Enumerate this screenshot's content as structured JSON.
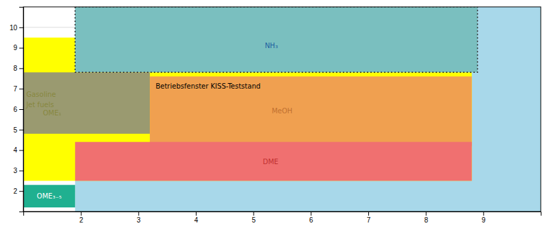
{
  "chart_data": {
    "type": "regions",
    "xlim": [
      1,
      10
    ],
    "ylim": [
      1,
      11
    ],
    "xticks": [
      2,
      3,
      4,
      5,
      6,
      7,
      8,
      9
    ],
    "yticks": [
      2,
      3,
      4,
      5,
      6,
      7,
      8,
      9,
      10
    ],
    "grid": true,
    "regions": [
      {
        "x": 1.9,
        "y": 1.0,
        "width": 8.1,
        "height": 10.0,
        "color": "#a8d8ea"
      },
      {
        "x": 1.0,
        "y": 2.5,
        "width": 7.8,
        "height": 7.0,
        "color": "#ffff00"
      },
      {
        "x": 1.9,
        "y": 7.8,
        "width": 7.0,
        "height": 3.2,
        "color": "#7abfbf"
      },
      {
        "x": 1.0,
        "y": 4.8,
        "width": 2.2,
        "height": 3.0,
        "color": "#9a9a70"
      },
      {
        "x": 3.2,
        "y": 4.2,
        "width": 5.6,
        "height": 3.4,
        "color": "#f0a050"
      },
      {
        "x": 1.9,
        "y": 2.5,
        "width": 6.9,
        "height": 1.9,
        "color": "#f07070"
      },
      {
        "x": 1.0,
        "y": 1.2,
        "width": 0.9,
        "height": 1.1,
        "color": "#20b090"
      }
    ],
    "outline": {
      "x": 1.9,
      "y": 7.8,
      "width": 7.0,
      "height": 3.2,
      "color": "#303030",
      "line_style": "dotted"
    },
    "annotations": [
      {
        "text": "NH₃",
        "x": 5.2,
        "y": 9.1,
        "color": "#2060a0",
        "align": "left"
      },
      {
        "text": "Gasoline",
        "x": 1.05,
        "y": 6.7,
        "color": "#888840",
        "align": "left"
      },
      {
        "text": "Jet fuels",
        "x": 1.05,
        "y": 6.2,
        "color": "#888840",
        "align": "left"
      },
      {
        "text": "OME₁",
        "x": 1.5,
        "y": 6.2,
        "color": "#888840",
        "align": "center"
      },
      {
        "text": "Betriebsfenster KISS-Teststand",
        "x": 3.3,
        "y": 7.1,
        "color": "#000000",
        "align": "left"
      },
      {
        "text": "MeOH",
        "x": 5.5,
        "y": 5.9,
        "color": "#c07030",
        "align": "center"
      },
      {
        "text": "DME",
        "x": 5.3,
        "y": 3.4,
        "color": "#c03030",
        "align": "center"
      },
      {
        "text": "OME₃₋₅",
        "x": 1.45,
        "y": 1.75,
        "color": "#ffffff",
        "align": "center"
      }
    ]
  }
}
